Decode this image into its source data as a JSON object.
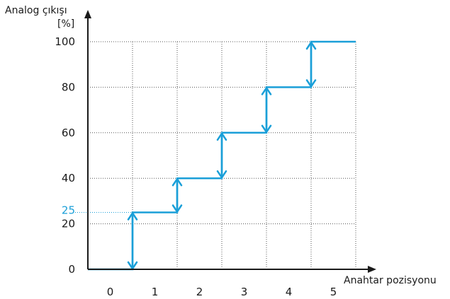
{
  "chart_data": {
    "type": "line",
    "title": "",
    "ylabel": "Analog çıkışı",
    "yunit": "[%]",
    "xlabel": "Anahtar pozisyonu",
    "x_tick_labels": [
      "0",
      "1",
      "2",
      "3",
      "4",
      "5"
    ],
    "y_ticks": [
      0,
      20,
      40,
      60,
      80,
      100
    ],
    "y_highlight_tick": "25",
    "ylim": [
      0,
      100
    ],
    "xlim": [
      0,
      6
    ],
    "grid": true,
    "series": [
      {
        "style": "step",
        "points": [
          {
            "x": 0,
            "y": 0
          },
          {
            "x": 1,
            "y": 0
          },
          {
            "x": 1,
            "y": 25
          },
          {
            "x": 2,
            "y": 25
          },
          {
            "x": 2,
            "y": 40
          },
          {
            "x": 3,
            "y": 40
          },
          {
            "x": 3,
            "y": 60
          },
          {
            "x": 4,
            "y": 60
          },
          {
            "x": 4,
            "y": 80
          },
          {
            "x": 5,
            "y": 80
          },
          {
            "x": 5,
            "y": 100
          },
          {
            "x": 6,
            "y": 100
          }
        ]
      }
    ],
    "transitions": [
      {
        "x": 1,
        "from": 0,
        "to": 25
      },
      {
        "x": 2,
        "from": 25,
        "to": 40
      },
      {
        "x": 3,
        "from": 40,
        "to": 60
      },
      {
        "x": 4,
        "from": 60,
        "to": 80
      },
      {
        "x": 5,
        "from": 80,
        "to": 100
      }
    ],
    "colors": {
      "series": "#1a9fd8",
      "axis": "#1a1a1a",
      "grid": "#555555",
      "highlight": "#1a9fd8"
    }
  }
}
